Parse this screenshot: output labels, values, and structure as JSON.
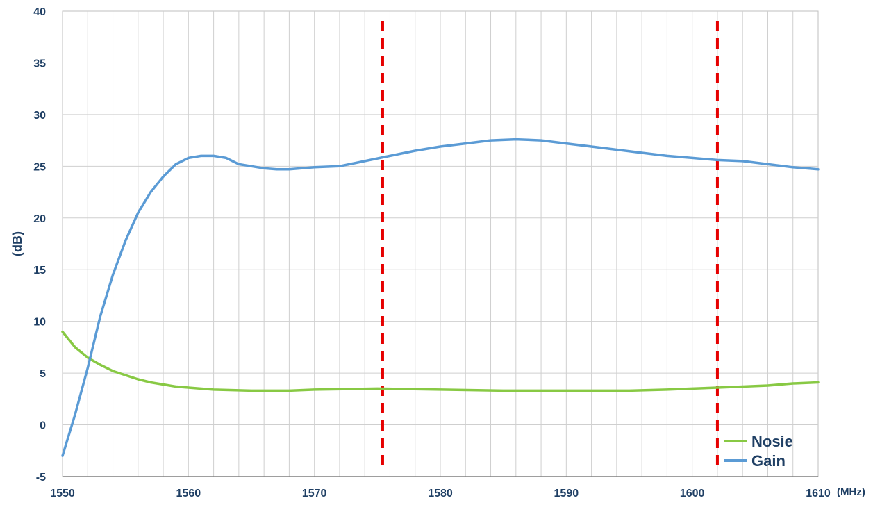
{
  "chart_data": {
    "type": "line",
    "xlabel": "(MHz)",
    "ylabel": "(dB)",
    "xlim": [
      1550,
      1610
    ],
    "ylim": [
      -5,
      40
    ],
    "x_ticks": [
      1550,
      1560,
      1570,
      1580,
      1590,
      1600,
      1610
    ],
    "y_ticks": [
      -5,
      0,
      5,
      10,
      15,
      20,
      25,
      30,
      35,
      40
    ],
    "x_minor_step": 2,
    "grid": true,
    "legend_position": "bottom-right",
    "series": [
      {
        "name": "Nosie",
        "color": "#88c944",
        "x": [
          1550,
          1551,
          1552,
          1553,
          1554,
          1555,
          1556,
          1557,
          1558,
          1559,
          1560,
          1562,
          1565,
          1568,
          1570,
          1575,
          1580,
          1585,
          1590,
          1595,
          1598,
          1600,
          1602,
          1604,
          1606,
          1608,
          1610
        ],
        "values": [
          9.0,
          7.5,
          6.5,
          5.8,
          5.2,
          4.8,
          4.4,
          4.1,
          3.9,
          3.7,
          3.6,
          3.4,
          3.3,
          3.3,
          3.4,
          3.5,
          3.4,
          3.3,
          3.3,
          3.3,
          3.4,
          3.5,
          3.6,
          3.7,
          3.8,
          4.0,
          4.1
        ]
      },
      {
        "name": "Gain",
        "color": "#5b9bd5",
        "x": [
          1550,
          1551,
          1552,
          1553,
          1554,
          1555,
          1556,
          1557,
          1558,
          1559,
          1560,
          1561,
          1562,
          1563,
          1564,
          1565,
          1566,
          1567,
          1568,
          1569,
          1570,
          1572,
          1574,
          1576,
          1578,
          1580,
          1582,
          1584,
          1586,
          1588,
          1590,
          1592,
          1594,
          1596,
          1598,
          1600,
          1602,
          1604,
          1606,
          1608,
          1610
        ],
        "values": [
          -3.0,
          1.0,
          5.5,
          10.5,
          14.5,
          17.8,
          20.5,
          22.5,
          24.0,
          25.2,
          25.8,
          26.0,
          26.0,
          25.8,
          25.2,
          25.0,
          24.8,
          24.7,
          24.7,
          24.8,
          24.9,
          25.0,
          25.5,
          26.0,
          26.5,
          26.9,
          27.2,
          27.5,
          27.6,
          27.5,
          27.2,
          26.9,
          26.6,
          26.3,
          26.0,
          25.8,
          25.6,
          25.5,
          25.2,
          24.9,
          24.7
        ]
      }
    ],
    "reference_lines": [
      {
        "x": 1575.42,
        "color": "#e60000",
        "style": "dashed"
      },
      {
        "x": 1602.0,
        "color": "#e60000",
        "style": "dashed"
      }
    ]
  }
}
